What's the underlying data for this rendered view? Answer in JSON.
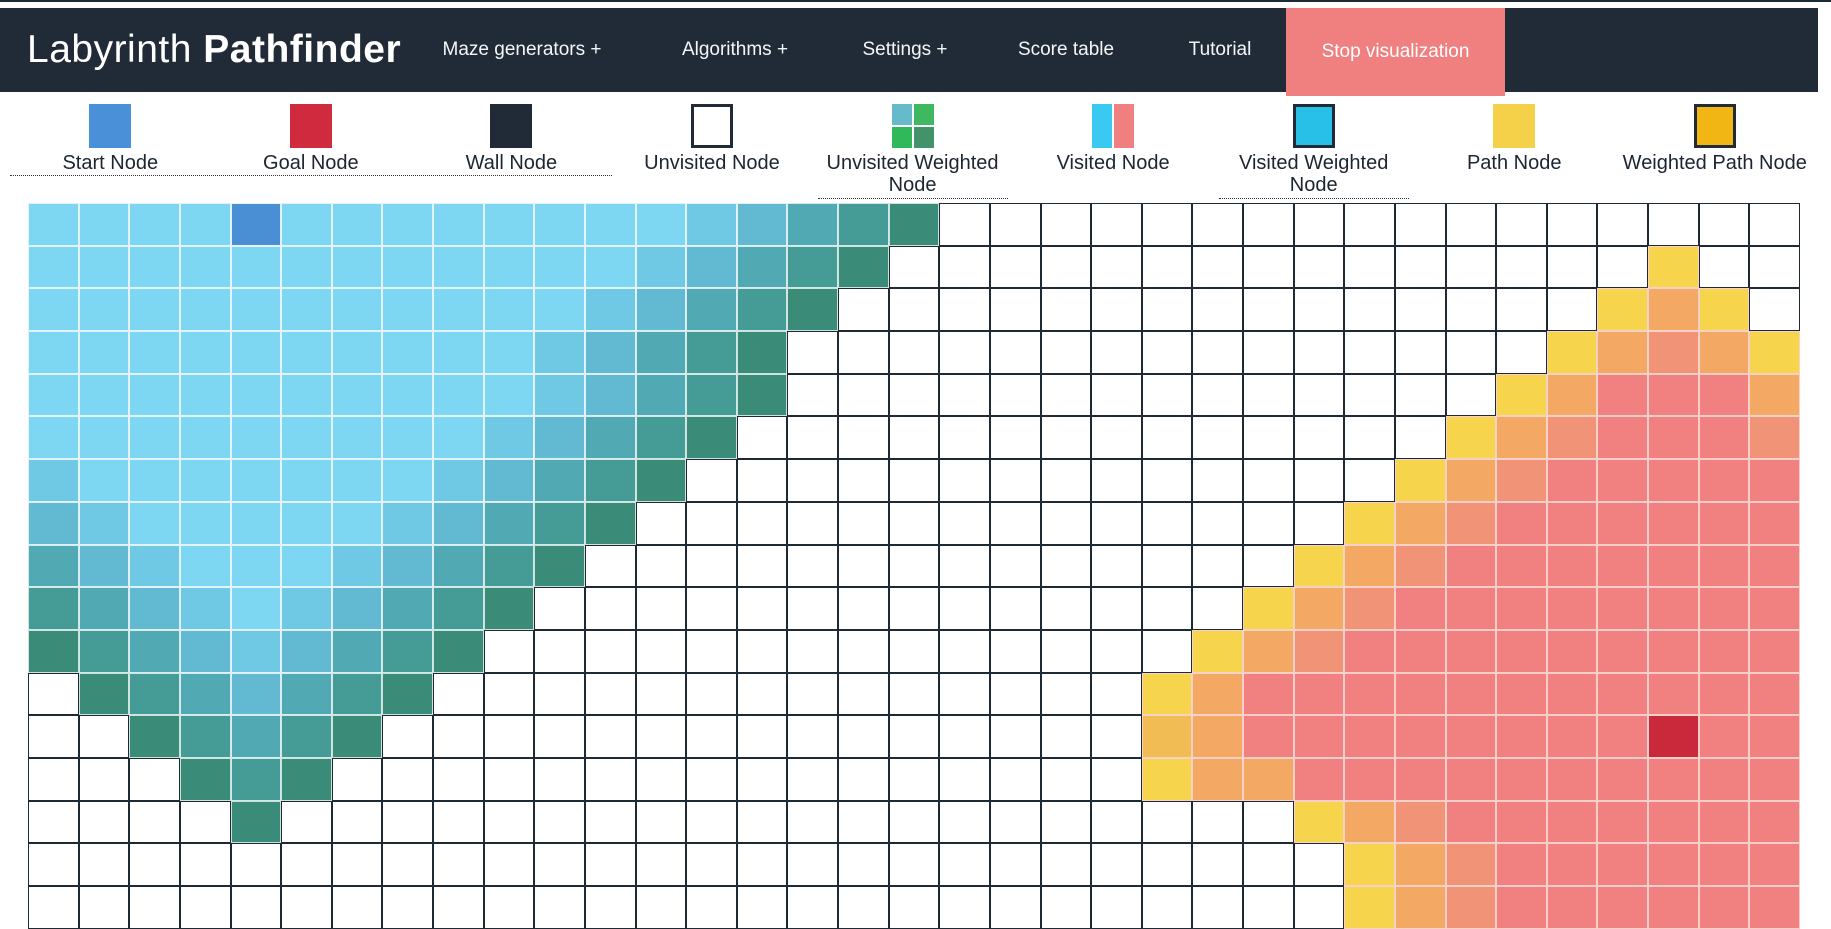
{
  "navbar": {
    "title_light": "Labyrinth",
    "title_bold": "Pathfinder",
    "items": [
      "Maze generators +",
      "Algorithms +",
      "Settings +",
      "Score table",
      "Tutorial"
    ],
    "stop_button_label": "Stop visualization",
    "bg_color": "#212b38",
    "stop_button_color": "#f08080"
  },
  "legend": {
    "items": [
      {
        "label": "Start Node",
        "underline": false,
        "swatch": {
          "kind": "plain",
          "colors": [
            "#4a90d9"
          ]
        }
      },
      {
        "label": "Goal Node",
        "underline": false,
        "swatch": {
          "kind": "plain",
          "colors": [
            "#d02a3f"
          ]
        }
      },
      {
        "label": "Wall Node",
        "underline": false,
        "swatch": {
          "kind": "plain",
          "colors": [
            "#212b38"
          ]
        }
      },
      {
        "label": "Unvisited Node",
        "underline": false,
        "swatch": {
          "kind": "bordered",
          "colors": [
            "#ffffff"
          ]
        }
      },
      {
        "label": "Unvisited Weighted Node",
        "underline": true,
        "swatch": {
          "kind": "quad",
          "colors": [
            "#66bac9",
            "#3eb95f",
            "#2fb95a",
            "#42926a"
          ]
        }
      },
      {
        "label": "Visited Node",
        "underline": false,
        "swatch": {
          "kind": "split",
          "colors": [
            "#39c9f1",
            "#f08080"
          ]
        }
      },
      {
        "label": "Visited Weighted Node",
        "underline": true,
        "swatch": {
          "kind": "bordered",
          "colors": [
            "#29c0e8"
          ]
        }
      },
      {
        "label": "Path Node",
        "underline": false,
        "swatch": {
          "kind": "plain",
          "colors": [
            "#f5d049"
          ]
        }
      },
      {
        "label": "Weighted Path Node",
        "underline": false,
        "swatch": {
          "kind": "bordered",
          "colors": [
            "#f2b614"
          ]
        }
      }
    ]
  },
  "grid": {
    "cols": 35,
    "rows": 17,
    "start_cell": {
      "row": 0,
      "col": 4
    },
    "goal_cell": {
      "row": 12,
      "col": 32
    },
    "palette": {
      ".": {
        "bg": "#ffffff",
        "line": "#1e2936",
        "name": "unvisited"
      },
      "a": {
        "bg": "#7ed7f2",
        "line": "#e2f3fa",
        "name": "visited-cyan"
      },
      "b": {
        "bg": "#70c9e4",
        "line": "#e2f3fa",
        "name": "visited-cyan-2"
      },
      "c": {
        "bg": "#62bad2",
        "line": "#def0f6",
        "name": "visited-cyan-3"
      },
      "d": {
        "bg": "#51a9b4",
        "line": "#d8ecf0",
        "name": "visited-teal"
      },
      "e": {
        "bg": "#459b95",
        "line": "#d2e8e6",
        "name": "visited-teal-dark"
      },
      "f": {
        "bg": "#3a8b78",
        "line": "#cde4dd",
        "name": "visited-frontier-green"
      },
      "Y": {
        "bg": "#f6d44b",
        "line": "#f8d2c9",
        "name": "frontier-yellow"
      },
      "M": {
        "bg": "#f2bc55",
        "line": "#f8d2c9",
        "name": "frontier-amber"
      },
      "O": {
        "bg": "#f3a964",
        "line": "#f8d2c9",
        "name": "frontier-orange"
      },
      "T": {
        "bg": "#f19376",
        "line": "#f8d2c9",
        "name": "visited-salmon-orange"
      },
      "P": {
        "bg": "#f18181",
        "line": "#f8cfc8",
        "name": "visited-salmon"
      },
      "S": {
        "bg": "#4a8fd3",
        "line": "#e2f3fa",
        "name": "start-node"
      },
      "G": {
        "bg": "#c9293a",
        "line": "#f8cfc8",
        "name": "goal-node"
      }
    },
    "rows_map": [
      "aaaaSaaaaaaaabcdef.................",
      "aaaaaaaaaaaabcdef...............Y..",
      "aaaaaaaaaaabcdef...............YOY.",
      "aaaaaaaaaabcdef...............YOTOY",
      "aaaaaaaaaabcdef..............YOPPPO",
      "aaaaaaaaabcdef..............YOTPPPT",
      "baaaaaaabcdef..............YOTPPPPP",
      "cbaaaaabcdef..............YOTPPPPPP",
      "dcbaaabcdef..............YOTPPPPPPP",
      "edcbabcdef..............YOTPPPPPPPP",
      "fedcbcdef..............YOTPPPPPPPPP",
      ".fedcdef..............YOPPPPPPPPPPP",
      "..fedef...............MOPPPPPPPPGPP",
      "...fef................YOOPPPPPPPPPP",
      "....f....................YOTPPPPPPP",
      "..........................YOTPPPPPP",
      "..........................YOTPPPPPP"
    ]
  }
}
